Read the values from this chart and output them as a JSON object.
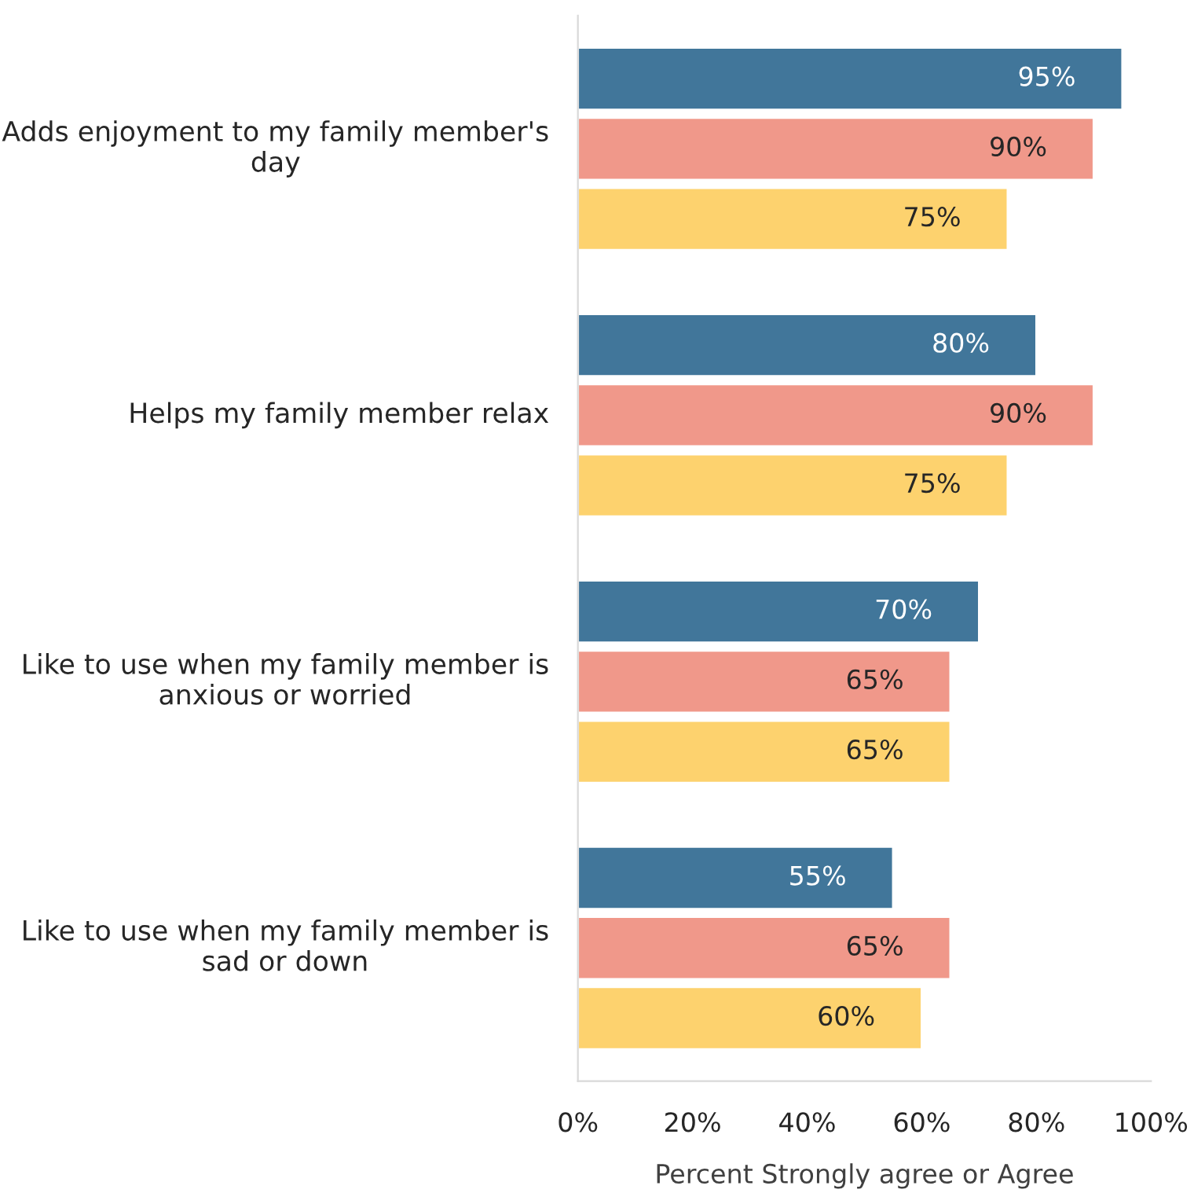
{
  "chart_data": {
    "type": "bar",
    "orientation": "horizontal",
    "xlabel": "Percent Strongly agree or Agree",
    "categories": [
      "Adds enjoyment to my family member's day",
      "Helps my family member relax",
      "Like to use when my family member is anxious or worried",
      "Like to use when my family member is sad or down"
    ],
    "series": [
      {
        "color": "#41769a",
        "values": [
          95,
          80,
          70,
          55
        ],
        "value_labels": [
          "95%",
          "80%",
          "70%",
          "55%"
        ]
      },
      {
        "color": "#f0988a",
        "values": [
          90,
          90,
          65,
          65
        ],
        "value_labels": [
          "90%",
          "90%",
          "65%",
          "65%"
        ]
      },
      {
        "color": "#fdd26e",
        "values": [
          75,
          75,
          65,
          60
        ],
        "value_labels": [
          "75%",
          "75%",
          "65%",
          "60%"
        ]
      }
    ],
    "xlim": [
      0,
      100
    ],
    "xticks": [
      {
        "value": 0,
        "label": "0%"
      },
      {
        "value": 20,
        "label": "20%"
      },
      {
        "value": 40,
        "label": "40%"
      },
      {
        "value": 60,
        "label": "60%"
      },
      {
        "value": 80,
        "label": "80%"
      },
      {
        "value": 100,
        "label": "100%"
      }
    ],
    "grid": false
  }
}
